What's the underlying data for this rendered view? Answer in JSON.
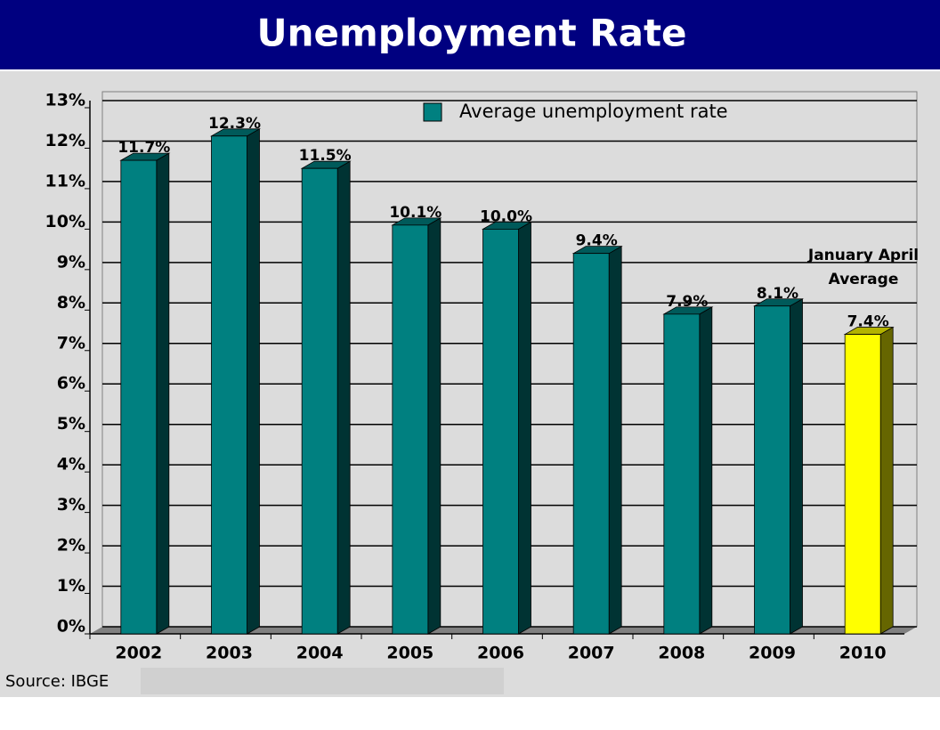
{
  "chart_data": {
    "type": "bar",
    "title": "Unemployment Rate",
    "categories": [
      "2002",
      "2003",
      "2004",
      "2005",
      "2006",
      "2007",
      "2008",
      "2009",
      "2010"
    ],
    "series": [
      {
        "name": "Average unemployment rate",
        "color": "#008080",
        "values": [
          11.7,
          12.3,
          11.5,
          10.1,
          10.0,
          9.4,
          7.9,
          8.1,
          7.4
        ],
        "value_labels": [
          "11.7%",
          "12.3%",
          "11.5%",
          "10.1%",
          "10.0%",
          "9.4%",
          "7.9%",
          "8.1%",
          "7.4%"
        ],
        "colors": [
          "#008080",
          "#008080",
          "#008080",
          "#008080",
          "#008080",
          "#008080",
          "#008080",
          "#008080",
          "#ffff00"
        ]
      }
    ],
    "ylim": [
      0,
      13
    ],
    "yticks": [
      {
        "value": 0,
        "label": "0%"
      },
      {
        "value": 1,
        "label": "1%"
      },
      {
        "value": 2,
        "label": "2%"
      },
      {
        "value": 3,
        "label": "3%"
      },
      {
        "value": 4,
        "label": "4%"
      },
      {
        "value": 5,
        "label": "5%"
      },
      {
        "value": 6,
        "label": "6%"
      },
      {
        "value": 7,
        "label": "7%"
      },
      {
        "value": 8,
        "label": "8%"
      },
      {
        "value": 9,
        "label": "9%"
      },
      {
        "value": 10,
        "label": "10%"
      },
      {
        "value": 11,
        "label": "11%"
      },
      {
        "value": 12,
        "label": "12%"
      },
      {
        "value": 13,
        "label": "13%"
      }
    ],
    "grid": true,
    "legend": "top-right",
    "annotation_lines": [
      "January April",
      "Average"
    ],
    "source": "Source: IBGE"
  }
}
